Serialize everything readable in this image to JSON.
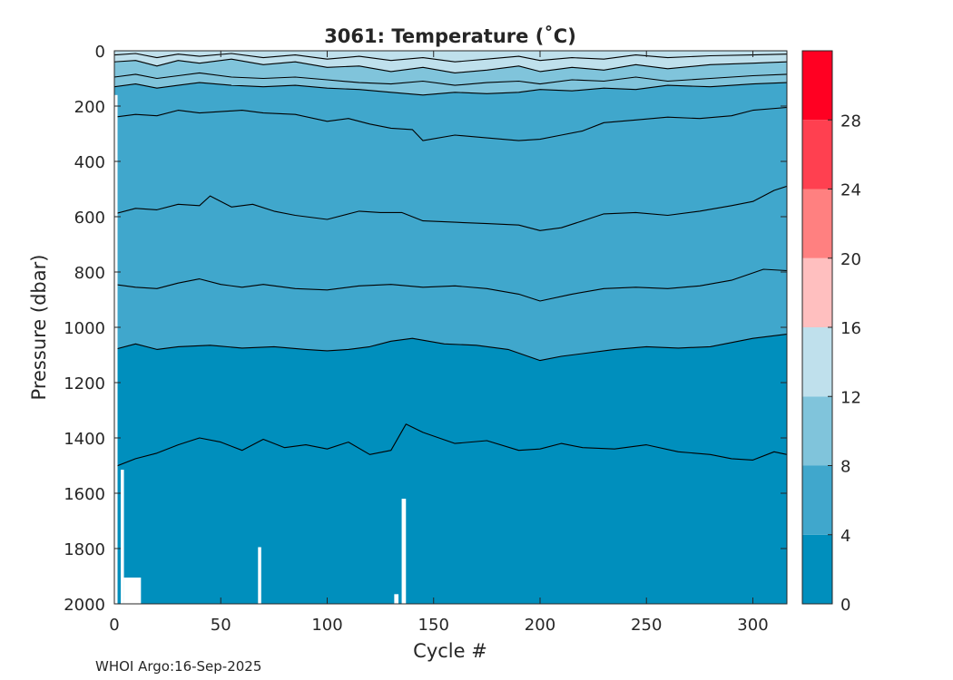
{
  "chart_data": {
    "type": "heatmap",
    "subtype": "filled-contour",
    "title": "3061:  Temperature (˚C)",
    "xlabel": "Cycle #",
    "ylabel": "Pressure (dbar)",
    "xlim": [
      0,
      316
    ],
    "ylim": [
      0,
      2000
    ],
    "y_reversed": true,
    "x_ticks": [
      0,
      50,
      100,
      150,
      200,
      250,
      300
    ],
    "y_ticks": [
      0,
      200,
      400,
      600,
      800,
      1000,
      1200,
      1400,
      1600,
      1800,
      2000
    ],
    "colorbar": {
      "range": [
        0,
        32
      ],
      "ticks": [
        0,
        4,
        8,
        12,
        16,
        20,
        24,
        28
      ],
      "bands": [
        {
          "from": 0,
          "to": 4,
          "color": "#008fbd"
        },
        {
          "from": 4,
          "to": 8,
          "color": "#40a7cc"
        },
        {
          "from": 8,
          "to": 12,
          "color": "#80c4db"
        },
        {
          "from": 12,
          "to": 16,
          "color": "#bfe0ec"
        },
        {
          "from": 16,
          "to": 20,
          "color": "#ffbfbf"
        },
        {
          "from": 20,
          "to": 24,
          "color": "#ff8080"
        },
        {
          "from": 24,
          "to": 28,
          "color": "#ff4050"
        },
        {
          "from": 28,
          "to": 32,
          "color": "#ff0022"
        }
      ]
    },
    "contour_lines": [
      {
        "name": "contour-1400",
        "points": [
          [
            0,
            1505
          ],
          [
            10,
            1475
          ],
          [
            20,
            1455
          ],
          [
            30,
            1425
          ],
          [
            40,
            1400
          ],
          [
            50,
            1415
          ],
          [
            60,
            1445
          ],
          [
            70,
            1405
          ],
          [
            80,
            1435
          ],
          [
            90,
            1425
          ],
          [
            100,
            1440
          ],
          [
            110,
            1415
          ],
          [
            120,
            1460
          ],
          [
            130,
            1445
          ],
          [
            137,
            1350
          ],
          [
            145,
            1380
          ],
          [
            160,
            1420
          ],
          [
            175,
            1410
          ],
          [
            190,
            1445
          ],
          [
            200,
            1440
          ],
          [
            210,
            1420
          ],
          [
            220,
            1435
          ],
          [
            235,
            1440
          ],
          [
            250,
            1425
          ],
          [
            265,
            1450
          ],
          [
            280,
            1460
          ],
          [
            290,
            1475
          ],
          [
            300,
            1480
          ],
          [
            310,
            1450
          ],
          [
            316,
            1460
          ]
        ]
      },
      {
        "name": "contour-1000",
        "points": [
          [
            0,
            1080
          ],
          [
            10,
            1060
          ],
          [
            20,
            1080
          ],
          [
            30,
            1070
          ],
          [
            45,
            1065
          ],
          [
            60,
            1075
          ],
          [
            75,
            1070
          ],
          [
            90,
            1080
          ],
          [
            100,
            1085
          ],
          [
            110,
            1080
          ],
          [
            120,
            1070
          ],
          [
            130,
            1050
          ],
          [
            140,
            1040
          ],
          [
            155,
            1060
          ],
          [
            170,
            1065
          ],
          [
            185,
            1080
          ],
          [
            200,
            1120
          ],
          [
            210,
            1105
          ],
          [
            220,
            1095
          ],
          [
            235,
            1080
          ],
          [
            250,
            1070
          ],
          [
            265,
            1075
          ],
          [
            280,
            1070
          ],
          [
            290,
            1055
          ],
          [
            300,
            1040
          ],
          [
            316,
            1025
          ]
        ]
      },
      {
        "name": "contour-850",
        "points": [
          [
            0,
            845
          ],
          [
            10,
            855
          ],
          [
            20,
            860
          ],
          [
            30,
            840
          ],
          [
            40,
            825
          ],
          [
            50,
            845
          ],
          [
            60,
            855
          ],
          [
            70,
            845
          ],
          [
            85,
            860
          ],
          [
            100,
            865
          ],
          [
            115,
            850
          ],
          [
            130,
            845
          ],
          [
            145,
            855
          ],
          [
            160,
            850
          ],
          [
            175,
            860
          ],
          [
            190,
            880
          ],
          [
            200,
            905
          ],
          [
            215,
            880
          ],
          [
            230,
            860
          ],
          [
            245,
            855
          ],
          [
            260,
            860
          ],
          [
            275,
            850
          ],
          [
            290,
            830
          ],
          [
            305,
            790
          ],
          [
            316,
            795
          ]
        ]
      },
      {
        "name": "contour-580",
        "points": [
          [
            0,
            590
          ],
          [
            10,
            570
          ],
          [
            20,
            575
          ],
          [
            30,
            555
          ],
          [
            40,
            560
          ],
          [
            45,
            525
          ],
          [
            55,
            565
          ],
          [
            65,
            555
          ],
          [
            75,
            580
          ],
          [
            85,
            595
          ],
          [
            100,
            610
          ],
          [
            115,
            580
          ],
          [
            125,
            585
          ],
          [
            135,
            585
          ],
          [
            145,
            615
          ],
          [
            160,
            620
          ],
          [
            175,
            625
          ],
          [
            190,
            630
          ],
          [
            200,
            650
          ],
          [
            210,
            640
          ],
          [
            220,
            615
          ],
          [
            230,
            590
          ],
          [
            245,
            585
          ],
          [
            260,
            595
          ],
          [
            275,
            580
          ],
          [
            290,
            560
          ],
          [
            300,
            545
          ],
          [
            310,
            505
          ],
          [
            316,
            490
          ]
        ]
      },
      {
        "name": "contour-260",
        "points": [
          [
            0,
            240
          ],
          [
            10,
            230
          ],
          [
            20,
            235
          ],
          [
            30,
            215
          ],
          [
            40,
            225
          ],
          [
            50,
            220
          ],
          [
            60,
            215
          ],
          [
            70,
            225
          ],
          [
            85,
            230
          ],
          [
            100,
            255
          ],
          [
            110,
            245
          ],
          [
            120,
            265
          ],
          [
            130,
            280
          ],
          [
            140,
            285
          ],
          [
            145,
            325
          ],
          [
            160,
            305
          ],
          [
            175,
            315
          ],
          [
            190,
            325
          ],
          [
            200,
            320
          ],
          [
            210,
            305
          ],
          [
            220,
            290
          ],
          [
            230,
            260
          ],
          [
            245,
            250
          ],
          [
            260,
            240
          ],
          [
            275,
            245
          ],
          [
            290,
            235
          ],
          [
            300,
            215
          ],
          [
            316,
            205
          ]
        ]
      },
      {
        "name": "contour-140",
        "points": [
          [
            0,
            130
          ],
          [
            10,
            120
          ],
          [
            20,
            135
          ],
          [
            30,
            125
          ],
          [
            40,
            115
          ],
          [
            55,
            125
          ],
          [
            70,
            130
          ],
          [
            85,
            125
          ],
          [
            100,
            135
          ],
          [
            115,
            140
          ],
          [
            130,
            150
          ],
          [
            145,
            160
          ],
          [
            160,
            150
          ],
          [
            175,
            155
          ],
          [
            190,
            150
          ],
          [
            200,
            140
          ],
          [
            215,
            145
          ],
          [
            230,
            135
          ],
          [
            245,
            140
          ],
          [
            260,
            125
          ],
          [
            280,
            130
          ],
          [
            300,
            120
          ],
          [
            316,
            115
          ]
        ]
      },
      {
        "name": "contour-110",
        "points": [
          [
            0,
            95
          ],
          [
            10,
            85
          ],
          [
            20,
            100
          ],
          [
            30,
            90
          ],
          [
            40,
            80
          ],
          [
            55,
            95
          ],
          [
            70,
            100
          ],
          [
            85,
            95
          ],
          [
            100,
            105
          ],
          [
            115,
            115
          ],
          [
            130,
            120
          ],
          [
            145,
            110
          ],
          [
            160,
            125
          ],
          [
            175,
            115
          ],
          [
            190,
            110
          ],
          [
            200,
            120
          ],
          [
            215,
            105
          ],
          [
            230,
            110
          ],
          [
            245,
            95
          ],
          [
            260,
            110
          ],
          [
            280,
            100
          ],
          [
            300,
            90
          ],
          [
            316,
            85
          ]
        ]
      },
      {
        "name": "contour-60",
        "points": [
          [
            0,
            40
          ],
          [
            10,
            35
          ],
          [
            20,
            55
          ],
          [
            30,
            35
          ],
          [
            40,
            45
          ],
          [
            55,
            30
          ],
          [
            70,
            50
          ],
          [
            85,
            40
          ],
          [
            100,
            60
          ],
          [
            115,
            55
          ],
          [
            130,
            75
          ],
          [
            145,
            60
          ],
          [
            160,
            80
          ],
          [
            175,
            70
          ],
          [
            190,
            55
          ],
          [
            200,
            75
          ],
          [
            215,
            60
          ],
          [
            230,
            70
          ],
          [
            245,
            50
          ],
          [
            260,
            65
          ],
          [
            280,
            50
          ],
          [
            300,
            45
          ],
          [
            316,
            40
          ]
        ]
      },
      {
        "name": "contour-30",
        "points": [
          [
            0,
            15
          ],
          [
            10,
            10
          ],
          [
            20,
            25
          ],
          [
            30,
            12
          ],
          [
            40,
            20
          ],
          [
            55,
            10
          ],
          [
            70,
            25
          ],
          [
            85,
            15
          ],
          [
            100,
            30
          ],
          [
            115,
            20
          ],
          [
            130,
            35
          ],
          [
            145,
            25
          ],
          [
            160,
            40
          ],
          [
            175,
            30
          ],
          [
            190,
            20
          ],
          [
            200,
            35
          ],
          [
            215,
            25
          ],
          [
            230,
            30
          ],
          [
            245,
            15
          ],
          [
            260,
            25
          ],
          [
            280,
            18
          ],
          [
            300,
            15
          ],
          [
            316,
            12
          ]
        ]
      }
    ],
    "data_gaps": [
      {
        "name": "gap-start-left",
        "x": [
          0,
          1.5
        ],
        "y": [
          160,
          2000
        ]
      },
      {
        "name": "gap-early-deep",
        "x": [
          3,
          4.5
        ],
        "y": [
          1515,
          2000
        ]
      },
      {
        "name": "gap-cycle-5-12",
        "x": [
          4.5,
          12.5
        ],
        "y": [
          1905,
          2000
        ]
      },
      {
        "name": "gap-cycle-68",
        "x": [
          67.5,
          69
        ],
        "y": [
          1795,
          2000
        ]
      },
      {
        "name": "gap-cycle-132",
        "x": [
          131.5,
          133.5
        ],
        "y": [
          1965,
          2000
        ]
      },
      {
        "name": "gap-cycle-136",
        "x": [
          135,
          137
        ],
        "y": [
          1620,
          2000
        ]
      }
    ],
    "footer": "WHOI Argo:16-Sep-2025"
  }
}
